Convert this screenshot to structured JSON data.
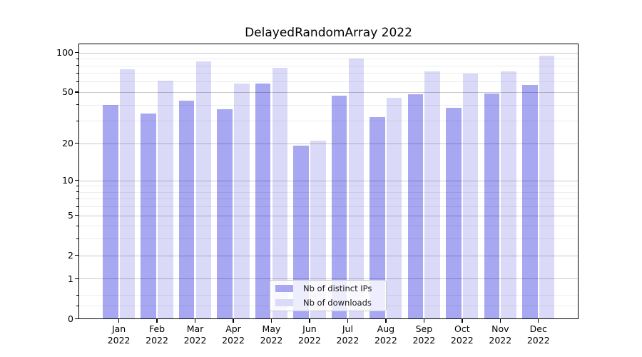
{
  "chart_data": {
    "type": "bar",
    "title": "DelayedRandomArray 2022",
    "categories": [
      "Jan",
      "Feb",
      "Mar",
      "Apr",
      "May",
      "Jun",
      "Jul",
      "Aug",
      "Sep",
      "Oct",
      "Nov",
      "Dec"
    ],
    "category_year_line": "2022",
    "series": [
      {
        "name": "Nb of distinct IPs",
        "color": "#a7a7f2",
        "values": [
          40,
          34,
          43,
          37,
          58,
          19,
          47,
          32,
          48,
          38,
          49,
          57
        ]
      },
      {
        "name": "Nb of downloads",
        "color": "#dadaf8",
        "values": [
          75,
          61,
          86,
          58,
          77,
          21,
          90,
          45,
          72,
          69,
          72,
          95
        ]
      }
    ],
    "xlabel": "",
    "ylabel": "",
    "yscale": "symlog (log1p)",
    "ylim": [
      0,
      118
    ],
    "y_major_ticks": [
      0,
      1,
      2,
      5,
      10,
      20,
      50,
      100
    ],
    "y_minor_ticks": [
      0.25,
      0.5,
      3,
      4,
      6,
      7,
      8,
      9,
      30,
      40,
      60,
      70,
      80,
      90
    ],
    "grid": true,
    "legend_position": "inside lower center"
  }
}
